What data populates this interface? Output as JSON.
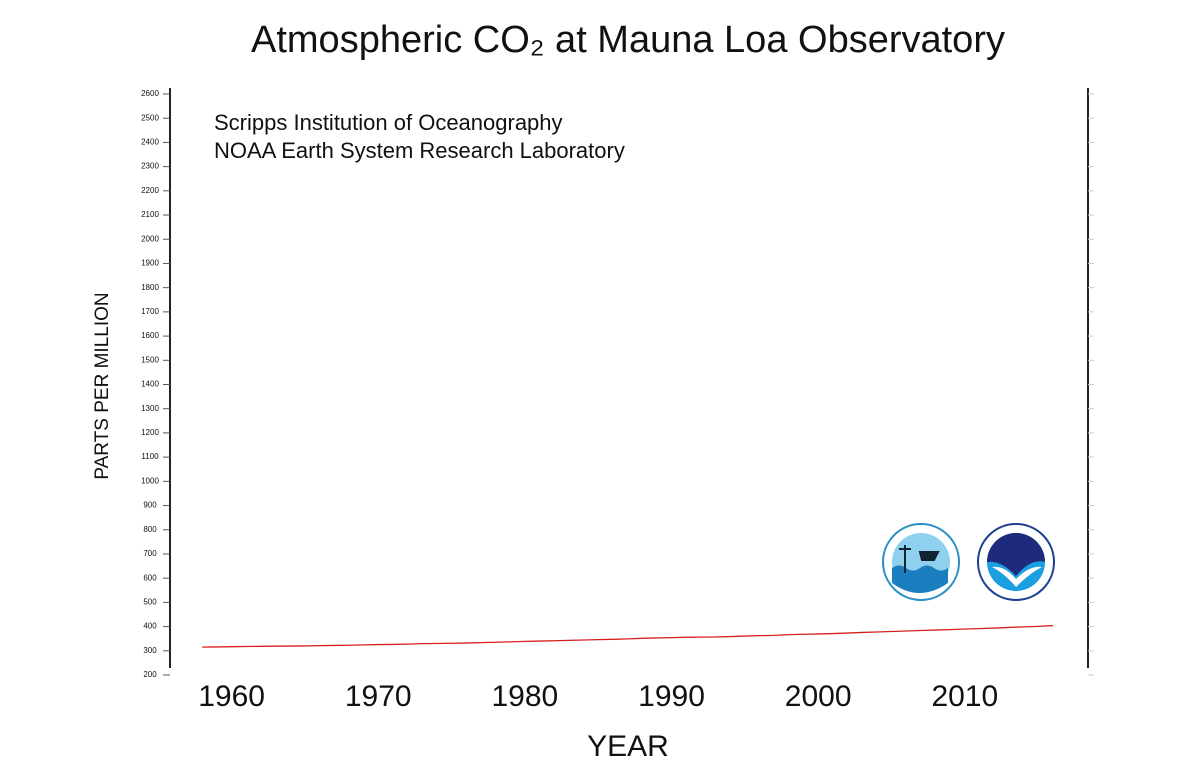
{
  "chart_data": {
    "type": "line",
    "title": "Atmospheric CO₂ at Mauna Loa Observatory",
    "annotations": [
      "Scripps Institution of Oceanography",
      "NOAA Earth System Research Laboratory"
    ],
    "x_label": "YEAR",
    "y_label": "PARTS PER MILLION",
    "color": "#d62020",
    "x": [
      1958,
      1959,
      1960,
      1961,
      1962,
      1963,
      1964,
      1965,
      1966,
      1967,
      1968,
      1969,
      1970,
      1971,
      1972,
      1973,
      1974,
      1975,
      1976,
      1977,
      1978,
      1979,
      1980,
      1981,
      1982,
      1983,
      1984,
      1985,
      1986,
      1987,
      1988,
      1989,
      1990,
      1991,
      1992,
      1993,
      1994,
      1995,
      1996,
      1997,
      1998,
      1999,
      2000,
      2001,
      2002,
      2003,
      2004,
      2005,
      2006,
      2007,
      2008,
      2009,
      2010,
      2011,
      2012,
      2013,
      2014,
      2015,
      2016
    ],
    "values": [
      315.3,
      316.0,
      316.9,
      317.6,
      318.5,
      319.0,
      319.6,
      320.0,
      321.4,
      322.2,
      323.0,
      324.6,
      325.7,
      326.3,
      327.5,
      329.7,
      330.2,
      331.1,
      332.0,
      333.8,
      335.4,
      336.8,
      338.8,
      340.1,
      341.5,
      343.1,
      344.7,
      346.1,
      347.4,
      349.2,
      351.6,
      353.1,
      354.4,
      355.6,
      356.5,
      357.1,
      358.8,
      360.8,
      362.6,
      363.7,
      366.7,
      368.4,
      369.6,
      371.1,
      373.3,
      375.8,
      377.5,
      379.8,
      381.9,
      383.8,
      385.6,
      387.4,
      389.9,
      391.7,
      393.9,
      396.5,
      398.7,
      400.8,
      404.2
    ],
    "xlim": [
      1955.8,
      2018.4
    ],
    "xticks": [
      1960,
      1970,
      1980,
      1990,
      2000,
      2010
    ],
    "ylim": [
      200,
      2600
    ],
    "yticks": [
      200,
      300,
      400,
      500,
      600,
      700,
      800,
      900,
      1000,
      1100,
      1200,
      1300,
      1400,
      1500,
      1600,
      1700,
      1800,
      1900,
      2000,
      2100,
      2200,
      2300,
      2400,
      2500,
      2600
    ]
  }
}
